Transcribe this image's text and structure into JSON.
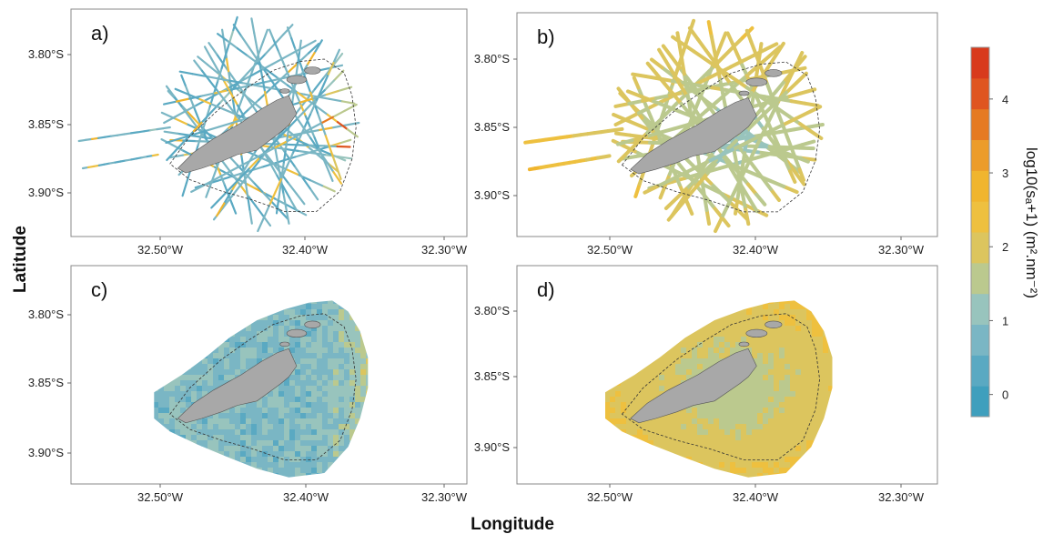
{
  "figure": {
    "xlabel": "Longitude",
    "ylabel": "Latitude"
  },
  "colors": {
    "scale": [
      "#3f9fbd",
      "#5aa9c2",
      "#7ab6c4",
      "#98c4bd",
      "#bbc98e",
      "#dcc55e",
      "#eec03f",
      "#f0b52e",
      "#ec9c2a",
      "#e57a22",
      "#df5520",
      "#d83a1c"
    ],
    "island": "#a8a8a8",
    "frame": "#888888"
  },
  "chart_data": [
    {
      "panel": "a)",
      "type": "scatter",
      "description_kind": "acoustic survey tracks",
      "xlim": [
        -32.555,
        -32.275
      ],
      "ylim": [
        -3.925,
        -3.77
      ],
      "x_ticks": [
        "32.50°W",
        "32.40°W",
        "32.30°W"
      ],
      "y_ticks": [
        "3.80°S",
        "3.85°S",
        "3.90°S"
      ],
      "value_range": [
        0,
        4.7
      ]
    },
    {
      "panel": "b)",
      "type": "scatter",
      "description_kind": "predicted values along tracks",
      "xlim": [
        -32.555,
        -32.275
      ],
      "ylim": [
        -3.925,
        -3.77
      ],
      "x_ticks": [
        "32.50°W",
        "32.40°W",
        "32.30°W"
      ],
      "y_ticks": [
        "3.80°S",
        "3.85°S",
        "3.90°S"
      ],
      "value_range": [
        0,
        4.7
      ]
    },
    {
      "panel": "c)",
      "type": "heatmap",
      "description_kind": "interpolated grid",
      "xlim": [
        -32.555,
        -32.275
      ],
      "ylim": [
        -3.925,
        -3.77
      ],
      "x_ticks": [
        "32.50°W",
        "32.40°W",
        "32.30°W"
      ],
      "y_ticks": [
        "3.80°S",
        "3.85°S",
        "3.90°S"
      ],
      "value_range": [
        0,
        4.7
      ]
    },
    {
      "panel": "d)",
      "type": "heatmap",
      "description_kind": "predicted grid",
      "xlim": [
        -32.555,
        -32.275
      ],
      "ylim": [
        -3.925,
        -3.77
      ],
      "x_ticks": [
        "32.50°W",
        "32.40°W",
        "32.30°W"
      ],
      "y_ticks": [
        "3.80°S",
        "3.85°S",
        "3.90°S"
      ],
      "value_range": [
        0,
        4.7
      ]
    }
  ],
  "colorbar": {
    "ticks": [
      "0",
      "1",
      "2",
      "3",
      "4"
    ],
    "tick_values": [
      0,
      1,
      2,
      3,
      4
    ],
    "range": [
      -0.3,
      4.7
    ],
    "title": "log10(sₐ+1) (m².nm⁻²)"
  }
}
